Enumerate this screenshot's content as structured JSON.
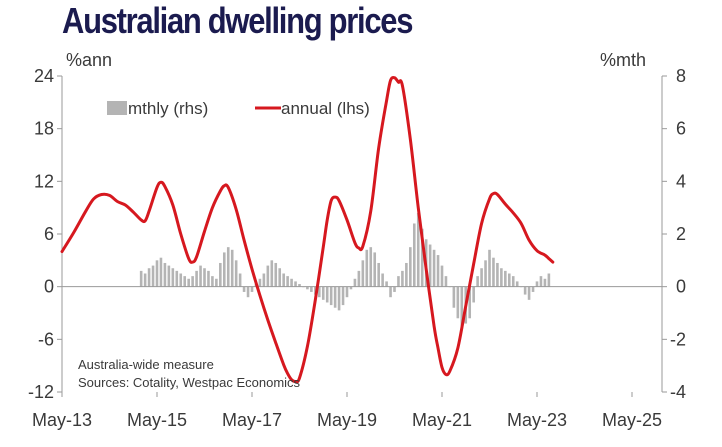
{
  "chart_data": {
    "type": "bar+line",
    "title": "Australian dwelling prices",
    "y_left_label": "%ann",
    "y_right_label": "%mth",
    "y_left_lim": [
      -12,
      24
    ],
    "y_right_lim": [
      -4,
      8
    ],
    "y_left_ticks": [
      24,
      18,
      12,
      6,
      0,
      -6,
      -12
    ],
    "y_right_ticks": [
      8,
      6,
      4,
      2,
      0,
      -2,
      -4
    ],
    "x_ticks": [
      {
        "label": "May-13",
        "t": 0
      },
      {
        "label": "May-15",
        "t": 24
      },
      {
        "label": "May-17",
        "t": 48
      },
      {
        "label": "May-19",
        "t": 72
      },
      {
        "label": "May-21",
        "t": 96
      },
      {
        "label": "May-23",
        "t": 120
      },
      {
        "label": "May-25",
        "t": 144
      }
    ],
    "legend": {
      "bars": "mthly (rhs)",
      "line": "annual (lhs)"
    },
    "notes": [
      "Australia-wide measure",
      "Sources: Cotality, Westpac Economics"
    ],
    "colors": {
      "bars": "#b4b4b4",
      "line": "#d6181f",
      "text": "#3a3a3a",
      "title": "#1b1b4f",
      "axis": "#9a9a9a"
    },
    "annual_series": {
      "name": "annual (lhs)",
      "points": [
        [
          0,
          4.0
        ],
        [
          3,
          6.2
        ],
        [
          6,
          8.6
        ],
        [
          8,
          10.0
        ],
        [
          10,
          10.5
        ],
        [
          12,
          10.4
        ],
        [
          14,
          9.7
        ],
        [
          16,
          9.3
        ],
        [
          18,
          8.5
        ],
        [
          20,
          7.6
        ],
        [
          21,
          7.5
        ],
        [
          22,
          8.6
        ],
        [
          24,
          11.3
        ],
        [
          25,
          11.9
        ],
        [
          26,
          11.4
        ],
        [
          28,
          9.3
        ],
        [
          30,
          6.0
        ],
        [
          32,
          3.2
        ],
        [
          33,
          2.8
        ],
        [
          34,
          3.4
        ],
        [
          36,
          6.3
        ],
        [
          38,
          9.0
        ],
        [
          40,
          10.9
        ],
        [
          41,
          11.5
        ],
        [
          42,
          11.3
        ],
        [
          44,
          8.8
        ],
        [
          46,
          5.3
        ],
        [
          48,
          2.0
        ],
        [
          50,
          -1.0
        ],
        [
          52,
          -3.8
        ],
        [
          54,
          -6.4
        ],
        [
          56,
          -8.9
        ],
        [
          57,
          -9.9
        ],
        [
          58,
          -10.6
        ],
        [
          59,
          -10.8
        ],
        [
          60,
          -10.4
        ],
        [
          62,
          -6.8
        ],
        [
          64,
          -1.5
        ],
        [
          66,
          4.5
        ],
        [
          67,
          7.6
        ],
        [
          68,
          9.8
        ],
        [
          69,
          10.2
        ],
        [
          70,
          9.8
        ],
        [
          72,
          7.6
        ],
        [
          74,
          5.0
        ],
        [
          75,
          4.4
        ],
        [
          76,
          4.6
        ],
        [
          78,
          8.6
        ],
        [
          80,
          15.8
        ],
        [
          82,
          21.2
        ],
        [
          83,
          23.5
        ],
        [
          84,
          23.8
        ],
        [
          85,
          23.3
        ],
        [
          86,
          22.9
        ],
        [
          88,
          16.8
        ],
        [
          90,
          9.0
        ],
        [
          92,
          2.0
        ],
        [
          94,
          -4.5
        ],
        [
          95,
          -7.0
        ],
        [
          96,
          -9.2
        ],
        [
          97,
          -10.0
        ],
        [
          98,
          -9.6
        ],
        [
          100,
          -7.0
        ],
        [
          102,
          -2.2
        ],
        [
          104,
          2.6
        ],
        [
          106,
          7.2
        ],
        [
          108,
          10.0
        ],
        [
          109,
          10.6
        ],
        [
          110,
          10.5
        ],
        [
          112,
          9.4
        ],
        [
          114,
          8.4
        ],
        [
          116,
          7.2
        ],
        [
          118,
          5.3
        ],
        [
          120,
          4.1
        ],
        [
          122,
          3.6
        ],
        [
          123,
          3.2
        ],
        [
          124,
          2.8
        ]
      ]
    },
    "monthly_series": {
      "name": "mthly (rhs)",
      "values": [
        0.6,
        0.5,
        0.7,
        0.8,
        1.0,
        1.1,
        0.9,
        0.8,
        0.7,
        0.6,
        0.5,
        0.4,
        0.3,
        0.4,
        0.6,
        0.8,
        0.7,
        0.6,
        0.4,
        0.3,
        0.9,
        1.3,
        1.5,
        1.4,
        1.0,
        0.5,
        -0.2,
        -0.4,
        -0.2,
        0.1,
        0.3,
        0.5,
        0.8,
        1.0,
        0.9,
        0.7,
        0.5,
        0.4,
        0.3,
        0.2,
        0.1,
        0.0,
        -0.1,
        -0.2,
        -0.3,
        -0.4,
        -0.5,
        -0.6,
        -0.7,
        -0.8,
        -0.9,
        -0.7,
        -0.4,
        -0.1,
        0.3,
        0.6,
        1.0,
        1.4,
        1.5,
        1.3,
        0.9,
        0.5,
        0.2,
        -0.4,
        -0.2,
        0.4,
        0.6,
        0.9,
        1.5,
        2.4,
        2.8,
        2.2,
        1.8,
        1.6,
        1.4,
        1.2,
        0.8,
        0.4,
        0.0,
        -0.8,
        -1.2,
        -1.6,
        -1.4,
        -1.2,
        -0.6,
        0.4,
        0.7,
        1.0,
        1.4,
        1.1,
        0.9,
        0.7,
        0.6,
        0.5,
        0.4,
        0.2,
        0.0,
        -0.3,
        -0.5,
        -0.2,
        0.2,
        0.4,
        0.3,
        0.5
      ],
      "start_t": 20
    }
  }
}
